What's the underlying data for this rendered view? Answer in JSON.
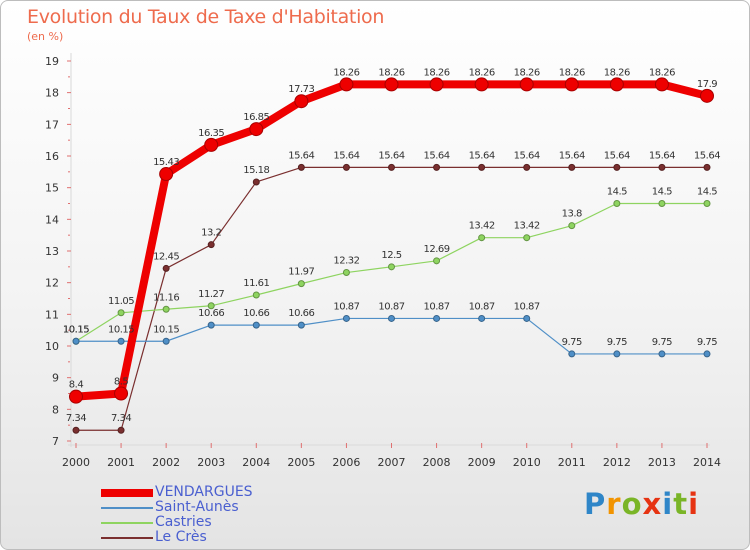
{
  "title": "Evolution du Taux de Taxe d'Habitation",
  "unit": "(en %)",
  "logo": {
    "text": "Proxiti",
    "colors": [
      "#2f86c8",
      "#f29400",
      "#7ab527",
      "#e63312",
      "#2f86c8",
      "#7ab527",
      "#e63312"
    ]
  },
  "chart_data": {
    "type": "line",
    "x": [
      2000,
      2001,
      2002,
      2003,
      2004,
      2005,
      2006,
      2007,
      2008,
      2009,
      2010,
      2011,
      2012,
      2013,
      2014
    ],
    "y_ticks": [
      7,
      8,
      9,
      10,
      11,
      12,
      13,
      14,
      15,
      16,
      17,
      18,
      19
    ],
    "ylim": [
      7,
      19
    ],
    "grid": false,
    "legend_position": "bottom-left",
    "series": [
      {
        "name": "VENDARGUES",
        "color": "#ee0000",
        "values": [
          8.4,
          8.5,
          15.43,
          16.35,
          16.85,
          17.73,
          18.26,
          18.26,
          18.26,
          18.26,
          18.26,
          18.26,
          18.26,
          18.26,
          17.9
        ],
        "labels": [
          "8.4",
          "8.5",
          "15.43",
          "16.35",
          "16.85",
          "17.73",
          "18.26",
          "18.26",
          "18.26",
          "18.26",
          "18.26",
          "18.26",
          "18.26",
          "18.26",
          "17.9"
        ]
      },
      {
        "name": "Saint-Aunès",
        "color": "#4f8fc7",
        "values": [
          10.15,
          10.15,
          10.15,
          10.66,
          10.66,
          10.66,
          10.87,
          10.87,
          10.87,
          10.87,
          10.87,
          9.75,
          9.75,
          9.75,
          9.75
        ],
        "labels": [
          "10.15",
          "10.15",
          "10.15",
          "10.66",
          "10.66",
          "10.66",
          "10.87",
          "10.87",
          "10.87",
          "10.87",
          "10.87",
          "9.75",
          "9.75",
          "9.75",
          "9.75"
        ]
      },
      {
        "name": "Castries",
        "color": "#8ed460",
        "values": [
          10.15,
          11.05,
          11.16,
          11.27,
          11.61,
          11.97,
          12.32,
          12.5,
          12.69,
          13.42,
          13.42,
          13.8,
          14.5,
          14.5,
          14.5
        ],
        "labels": [
          "10.15",
          "11.05",
          "11.16",
          "11.27",
          "11.61",
          "11.97",
          "12.32",
          "12.5",
          "12.69",
          "13.42",
          "13.42",
          "13.8",
          "14.5",
          "14.5",
          "14.5"
        ]
      },
      {
        "name": "Le Crès",
        "color": "#7a2f2f",
        "values": [
          7.34,
          7.34,
          12.45,
          13.2,
          15.18,
          15.64,
          15.64,
          15.64,
          15.64,
          15.64,
          15.64,
          15.64,
          15.64,
          15.64,
          15.64
        ],
        "labels": [
          "7.34",
          "7.34",
          "12.45",
          "13.2",
          "15.18",
          "15.64",
          "15.64",
          "15.64",
          "15.64",
          "15.64",
          "15.64",
          "15.64",
          "15.64",
          "15.64",
          "15.64"
        ]
      }
    ]
  }
}
